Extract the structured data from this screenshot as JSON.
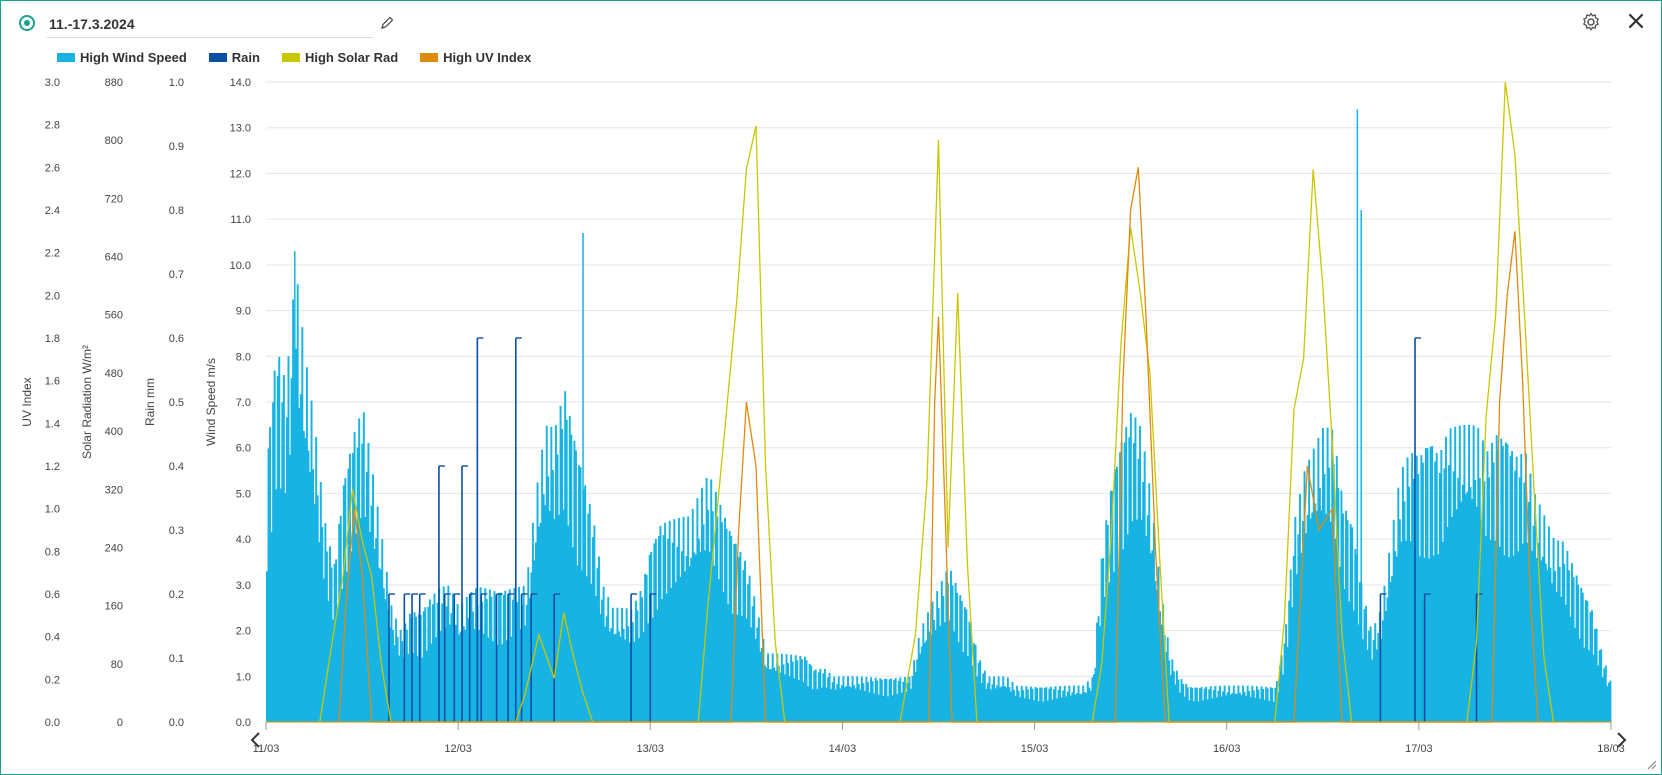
{
  "header": {
    "title": "11.-17.3.2024",
    "icons": {
      "edit": "pencil-icon",
      "settings": "gear-icon",
      "close": "close-icon"
    }
  },
  "colors": {
    "accent": "#1aa38a",
    "high_wind_speed": "#17b3e3",
    "rain": "#0a4fa6",
    "high_solar_rad": "#c8c700",
    "high_uv_index": "#e08a0b",
    "grid": "#e6e6e6",
    "axis_text": "#444444"
  },
  "chart_data": {
    "type": "line",
    "legend_position": "top-left",
    "grid": true,
    "x": {
      "label": "",
      "tick_labels": [
        "11/03",
        "12/03",
        "13/03",
        "14/03",
        "15/03",
        "16/03",
        "17/03",
        "18/03"
      ],
      "range_days": [
        0,
        7
      ]
    },
    "y_axes": [
      {
        "id": "uv",
        "label": "UV Index",
        "range": [
          0,
          3.0
        ],
        "tick_labels": [
          "0.0",
          "0.2",
          "0.4",
          "0.6",
          "0.8",
          "1.0",
          "1.2",
          "1.4",
          "1.6",
          "1.8",
          "2.0",
          "2.2",
          "2.4",
          "2.6",
          "2.8",
          "3.0"
        ]
      },
      {
        "id": "solar",
        "label": "Solar Radiation W/m²",
        "range": [
          0,
          880
        ],
        "tick_labels": [
          "0",
          "80",
          "160",
          "240",
          "320",
          "400",
          "480",
          "560",
          "640",
          "720",
          "800",
          "880"
        ]
      },
      {
        "id": "rain",
        "label": "Rain mm",
        "range": [
          0,
          1.0
        ],
        "tick_labels": [
          "0.0",
          "0.1",
          "0.2",
          "0.3",
          "0.4",
          "0.5",
          "0.6",
          "0.7",
          "0.8",
          "0.9",
          "1.0"
        ]
      },
      {
        "id": "wind",
        "label": "Wind Speed m/s",
        "range": [
          0,
          14.0
        ],
        "tick_labels": [
          "0.0",
          "1.0",
          "2.0",
          "3.0",
          "4.0",
          "5.0",
          "6.0",
          "7.0",
          "8.0",
          "9.0",
          "10.0",
          "11.0",
          "12.0",
          "13.0",
          "14.0"
        ]
      }
    ],
    "series": [
      {
        "name": "High Wind Speed",
        "axis": "wind",
        "style": "bars",
        "values": [
          [
            0.0,
            6.0
          ],
          [
            0.05,
            8.5
          ],
          [
            0.1,
            7.5
          ],
          [
            0.15,
            10.0
          ],
          [
            0.2,
            8.0
          ],
          [
            0.25,
            6.5
          ],
          [
            0.3,
            4.5
          ],
          [
            0.35,
            3.5
          ],
          [
            0.4,
            5.5
          ],
          [
            0.45,
            6.5
          ],
          [
            0.5,
            7.0
          ],
          [
            0.55,
            5.5
          ],
          [
            0.6,
            4.0
          ],
          [
            0.65,
            2.5
          ],
          [
            0.7,
            2.0
          ],
          [
            0.75,
            2.5
          ],
          [
            0.8,
            2.5
          ],
          [
            0.85,
            2.8
          ],
          [
            0.9,
            3.0
          ],
          [
            0.95,
            3.0
          ],
          [
            1.0,
            2.5
          ],
          [
            1.05,
            2.8
          ],
          [
            1.1,
            3.0
          ],
          [
            1.15,
            3.0
          ],
          [
            1.2,
            3.0
          ],
          [
            1.25,
            3.0
          ],
          [
            1.3,
            3.0
          ],
          [
            1.35,
            3.0
          ],
          [
            1.4,
            5.0
          ],
          [
            1.45,
            6.5
          ],
          [
            1.5,
            6.5
          ],
          [
            1.55,
            7.5
          ],
          [
            1.6,
            6.5
          ],
          [
            1.65,
            5.5
          ],
          [
            1.7,
            4.5
          ],
          [
            1.75,
            3.0
          ],
          [
            1.8,
            2.5
          ],
          [
            1.85,
            2.5
          ],
          [
            1.9,
            2.5
          ],
          [
            1.95,
            3.0
          ],
          [
            2.0,
            4.0
          ],
          [
            2.05,
            4.5
          ],
          [
            2.1,
            4.5
          ],
          [
            2.15,
            4.5
          ],
          [
            2.2,
            4.5
          ],
          [
            2.25,
            5.0
          ],
          [
            2.3,
            5.5
          ],
          [
            2.35,
            5.0
          ],
          [
            2.4,
            4.5
          ],
          [
            2.45,
            4.0
          ],
          [
            2.5,
            3.5
          ],
          [
            2.55,
            2.5
          ],
          [
            2.6,
            1.5
          ],
          [
            2.65,
            1.5
          ],
          [
            2.7,
            1.5
          ],
          [
            2.75,
            1.5
          ],
          [
            2.8,
            1.5
          ],
          [
            2.85,
            1.2
          ],
          [
            2.9,
            1.2
          ],
          [
            2.95,
            1.0
          ],
          [
            3.0,
            1.0
          ],
          [
            3.05,
            1.0
          ],
          [
            3.1,
            1.0
          ],
          [
            3.15,
            1.0
          ],
          [
            3.2,
            1.0
          ],
          [
            3.25,
            1.0
          ],
          [
            3.3,
            1.0
          ],
          [
            3.35,
            1.0
          ],
          [
            3.4,
            2.0
          ],
          [
            3.45,
            2.5
          ],
          [
            3.5,
            3.0
          ],
          [
            3.55,
            3.5
          ],
          [
            3.6,
            3.0
          ],
          [
            3.65,
            2.5
          ],
          [
            3.7,
            1.5
          ],
          [
            3.75,
            1.0
          ],
          [
            3.8,
            1.0
          ],
          [
            3.85,
            1.0
          ],
          [
            3.9,
            0.8
          ],
          [
            3.95,
            0.8
          ],
          [
            4.0,
            0.8
          ],
          [
            4.05,
            0.8
          ],
          [
            4.1,
            0.8
          ],
          [
            4.15,
            0.8
          ],
          [
            4.2,
            0.8
          ],
          [
            4.25,
            0.8
          ],
          [
            4.3,
            1.0
          ],
          [
            4.35,
            4.0
          ],
          [
            4.4,
            5.5
          ],
          [
            4.45,
            6.5
          ],
          [
            4.5,
            7.0
          ],
          [
            4.55,
            6.5
          ],
          [
            4.6,
            5.0
          ],
          [
            4.65,
            3.0
          ],
          [
            4.7,
            1.5
          ],
          [
            4.75,
            1.0
          ],
          [
            4.8,
            0.8
          ],
          [
            4.85,
            0.8
          ],
          [
            4.9,
            0.8
          ],
          [
            4.95,
            0.8
          ],
          [
            5.0,
            0.8
          ],
          [
            5.05,
            0.8
          ],
          [
            5.1,
            0.8
          ],
          [
            5.15,
            0.8
          ],
          [
            5.2,
            0.8
          ],
          [
            5.25,
            0.8
          ],
          [
            5.3,
            2.0
          ],
          [
            5.35,
            4.5
          ],
          [
            5.4,
            5.5
          ],
          [
            5.45,
            6.0
          ],
          [
            5.5,
            6.5
          ],
          [
            5.55,
            6.5
          ],
          [
            5.6,
            5.0
          ],
          [
            5.65,
            4.5
          ],
          [
            5.7,
            3.0
          ],
          [
            5.75,
            2.0
          ],
          [
            5.8,
            2.5
          ],
          [
            5.85,
            4.0
          ],
          [
            5.9,
            5.5
          ],
          [
            5.95,
            6.0
          ],
          [
            6.0,
            6.0
          ],
          [
            6.05,
            6.5
          ],
          [
            6.1,
            6.0
          ],
          [
            6.15,
            6.5
          ],
          [
            6.2,
            6.5
          ],
          [
            6.25,
            6.5
          ],
          [
            6.3,
            6.5
          ],
          [
            6.35,
            6.0
          ],
          [
            6.4,
            6.5
          ],
          [
            6.45,
            6.5
          ],
          [
            6.5,
            6.0
          ],
          [
            6.55,
            6.0
          ],
          [
            6.6,
            5.0
          ],
          [
            6.65,
            4.5
          ],
          [
            6.7,
            4.0
          ],
          [
            6.75,
            4.0
          ],
          [
            6.8,
            3.5
          ],
          [
            6.85,
            3.0
          ],
          [
            6.9,
            2.5
          ],
          [
            6.95,
            1.5
          ],
          [
            7.0,
            0.8
          ]
        ],
        "peaks": [
          [
            0.15,
            10.3
          ],
          [
            1.65,
            10.7
          ],
          [
            5.68,
            13.4
          ],
          [
            5.7,
            11.2
          ]
        ]
      },
      {
        "name": "Rain",
        "axis": "rain",
        "style": "steps",
        "values": [
          [
            0.6,
            0.0
          ],
          [
            0.64,
            0.2
          ],
          [
            0.68,
            0.0
          ],
          [
            0.72,
            0.2
          ],
          [
            0.76,
            0.2
          ],
          [
            0.8,
            0.2
          ],
          [
            0.84,
            0.0
          ],
          [
            0.9,
            0.4
          ],
          [
            0.93,
            0.2
          ],
          [
            0.98,
            0.2
          ],
          [
            1.02,
            0.4
          ],
          [
            1.06,
            0.2
          ],
          [
            1.1,
            0.6
          ],
          [
            1.12,
            0.2
          ],
          [
            1.2,
            0.2
          ],
          [
            1.26,
            0.2
          ],
          [
            1.3,
            0.6
          ],
          [
            1.33,
            0.2
          ],
          [
            1.38,
            0.2
          ],
          [
            1.42,
            0.0
          ],
          [
            1.5,
            0.2
          ],
          [
            1.55,
            0.0
          ],
          [
            1.9,
            0.2
          ],
          [
            1.95,
            0.0
          ],
          [
            2.0,
            0.2
          ],
          [
            2.05,
            0.0
          ],
          [
            5.8,
            0.2
          ],
          [
            5.85,
            0.0
          ],
          [
            5.98,
            0.6
          ],
          [
            6.0,
            0.0
          ],
          [
            6.03,
            0.2
          ],
          [
            6.08,
            0.0
          ],
          [
            6.3,
            0.2
          ],
          [
            6.35,
            0.0
          ]
        ]
      },
      {
        "name": "High Solar Rad",
        "axis": "solar",
        "style": "line",
        "values": [
          [
            0.28,
            0
          ],
          [
            0.35,
            120
          ],
          [
            0.4,
            200
          ],
          [
            0.45,
            320
          ],
          [
            0.5,
            250
          ],
          [
            0.55,
            200
          ],
          [
            0.6,
            80
          ],
          [
            0.65,
            0
          ],
          [
            1.3,
            0
          ],
          [
            1.35,
            40
          ],
          [
            1.42,
            120
          ],
          [
            1.5,
            60
          ],
          [
            1.55,
            150
          ],
          [
            1.6,
            90
          ],
          [
            1.65,
            40
          ],
          [
            1.7,
            0
          ],
          [
            2.25,
            0
          ],
          [
            2.3,
            160
          ],
          [
            2.38,
            380
          ],
          [
            2.45,
            580
          ],
          [
            2.5,
            760
          ],
          [
            2.55,
            820
          ],
          [
            2.6,
            350
          ],
          [
            2.65,
            110
          ],
          [
            2.7,
            0
          ],
          [
            3.3,
            0
          ],
          [
            3.38,
            120
          ],
          [
            3.44,
            330
          ],
          [
            3.5,
            800
          ],
          [
            3.55,
            240
          ],
          [
            3.6,
            590
          ],
          [
            3.65,
            220
          ],
          [
            3.7,
            0
          ],
          [
            4.3,
            0
          ],
          [
            4.35,
            80
          ],
          [
            4.4,
            260
          ],
          [
            4.45,
            520
          ],
          [
            4.5,
            680
          ],
          [
            4.55,
            590
          ],
          [
            4.6,
            480
          ],
          [
            4.65,
            230
          ],
          [
            4.7,
            0
          ],
          [
            5.25,
            0
          ],
          [
            5.3,
            140
          ],
          [
            5.35,
            430
          ],
          [
            5.4,
            500
          ],
          [
            5.45,
            760
          ],
          [
            5.5,
            600
          ],
          [
            5.55,
            380
          ],
          [
            5.6,
            120
          ],
          [
            5.65,
            0
          ],
          [
            6.25,
            0
          ],
          [
            6.3,
            110
          ],
          [
            6.35,
            420
          ],
          [
            6.4,
            560
          ],
          [
            6.45,
            880
          ],
          [
            6.5,
            780
          ],
          [
            6.55,
            560
          ],
          [
            6.6,
            320
          ],
          [
            6.65,
            90
          ],
          [
            6.7,
            0
          ]
        ]
      },
      {
        "name": "High UV Index",
        "axis": "uv",
        "style": "line",
        "values": [
          [
            0.38,
            0
          ],
          [
            0.42,
            0.6
          ],
          [
            0.46,
            1.0
          ],
          [
            0.5,
            0.7
          ],
          [
            0.55,
            0
          ],
          [
            2.42,
            0
          ],
          [
            2.46,
            0.9
          ],
          [
            2.5,
            1.5
          ],
          [
            2.55,
            1.2
          ],
          [
            2.6,
            0
          ],
          [
            3.45,
            0
          ],
          [
            3.48,
            1.5
          ],
          [
            3.5,
            1.9
          ],
          [
            3.53,
            1.1
          ],
          [
            3.57,
            0
          ],
          [
            4.42,
            0
          ],
          [
            4.46,
            1.6
          ],
          [
            4.5,
            2.4
          ],
          [
            4.54,
            2.6
          ],
          [
            4.58,
            1.9
          ],
          [
            4.63,
            0.8
          ],
          [
            4.68,
            0
          ],
          [
            5.35,
            0
          ],
          [
            5.42,
            1.2
          ],
          [
            5.48,
            0.9
          ],
          [
            5.55,
            1.0
          ],
          [
            5.6,
            0
          ],
          [
            6.38,
            0
          ],
          [
            6.42,
            1.5
          ],
          [
            6.46,
            2.0
          ],
          [
            6.5,
            2.3
          ],
          [
            6.54,
            1.6
          ],
          [
            6.58,
            0.6
          ],
          [
            6.62,
            0
          ]
        ]
      }
    ]
  },
  "legend": [
    {
      "label": "High Wind Speed",
      "color": "#17b3e3"
    },
    {
      "label": "Rain",
      "color": "#0a4fa6"
    },
    {
      "label": "High Solar Rad",
      "color": "#c8c700"
    },
    {
      "label": "High UV Index",
      "color": "#e08a0b"
    }
  ],
  "navigation": {
    "prev_icon": "chevron-left-icon",
    "next_icon": "chevron-right-icon"
  },
  "resize_icon": "resize-handle-icon"
}
